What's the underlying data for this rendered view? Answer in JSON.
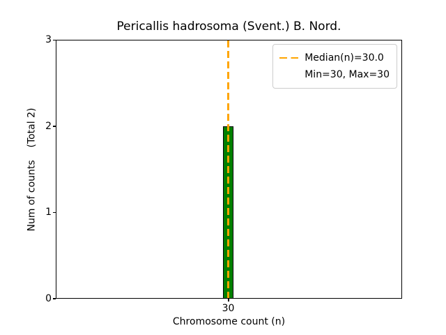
{
  "chart_data": {
    "type": "bar",
    "title": "Pericallis hadrosoma (Svent.) B. Nord.",
    "xlabel": "Chromosome count (n)",
    "ylabel": "Num of counts    (Total 2)",
    "categories": [
      "30"
    ],
    "values": [
      2
    ],
    "total_count": 2,
    "ylim": [
      0,
      3
    ],
    "y_ticks": [
      "0",
      "1",
      "2",
      "3"
    ],
    "x_ticks": [
      "30"
    ],
    "grid": false,
    "bar_color": "#008000",
    "bar_edge_color": "#000000",
    "median_line": {
      "x": 30.0,
      "color": "#ffa500",
      "style": "dashed",
      "span": "full-height"
    },
    "legend": {
      "position": "upper right",
      "entries": [
        {
          "label": "Median(n)=30.0",
          "handle": "dashed-line",
          "handle_color": "#ffa500"
        },
        {
          "label": "Min=30, Max=30",
          "handle": "none"
        }
      ]
    }
  }
}
